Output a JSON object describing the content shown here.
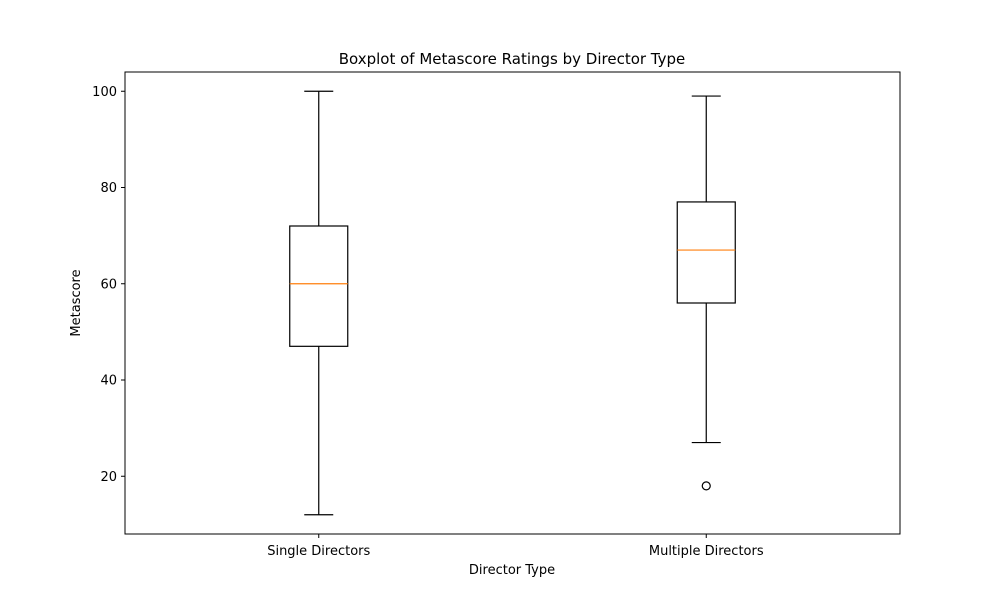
{
  "chart_data": {
    "type": "box",
    "title": "Boxplot of Metascore Ratings by Director Type",
    "xlabel": "Director Type",
    "ylabel": "Metascore",
    "ylim": [
      8,
      104
    ],
    "yticks": [
      20,
      40,
      60,
      80,
      100
    ],
    "grid": false,
    "categories": [
      "Single Directors",
      "Multiple Directors"
    ],
    "boxes": [
      {
        "category": "Single Directors",
        "whisker_low": 12,
        "q1": 47,
        "median": 60,
        "q3": 72,
        "whisker_high": 100,
        "outliers": []
      },
      {
        "category": "Multiple Directors",
        "whisker_low": 27,
        "q1": 56,
        "median": 67,
        "q3": 77,
        "whisker_high": 99,
        "outliers": [
          18
        ]
      }
    ],
    "colors": {
      "box": "#000000",
      "median": "#ff7f0e",
      "whisker": "#000000",
      "outlier": "#000000"
    }
  }
}
